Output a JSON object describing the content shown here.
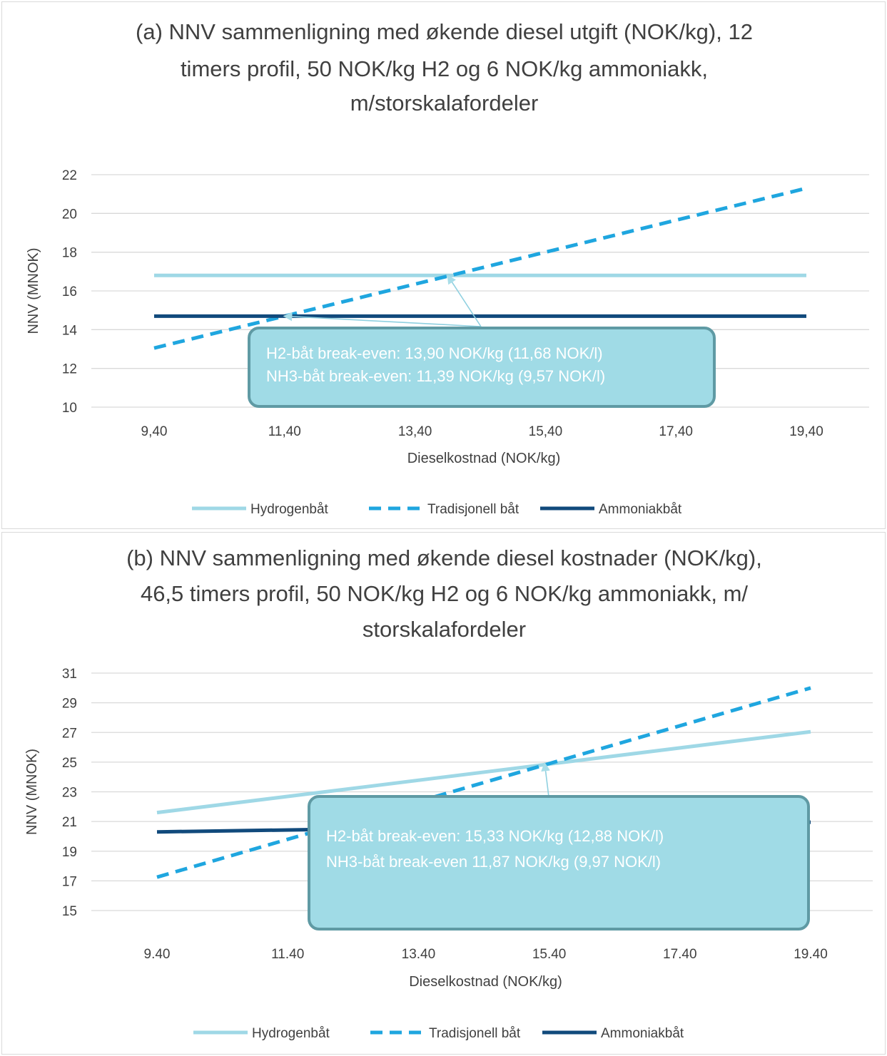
{
  "chart_data": [
    {
      "type": "line",
      "title_lines": [
        "(a) NNV sammenligning med økende diesel utgift (NOK/kg), 12",
        "timers profil, 50 NOK/kg H2 og 6 NOK/kg ammoniakk,",
        "m/storskalafordeler"
      ],
      "xlabel": "Dieselkostnad (NOK/kg)",
      "ylabel": "NNV (MNOK)",
      "x": [
        9.4,
        19.4
      ],
      "x_tick_labels": [
        "9,40",
        "11,40",
        "13,40",
        "15,40",
        "17,40",
        "19,40"
      ],
      "ylim": [
        10,
        22
      ],
      "y_ticks": [
        10,
        12,
        14,
        16,
        18,
        20,
        22
      ],
      "grid": "horizontal",
      "legend_position": "bottom",
      "series": [
        {
          "name": "Hydrogenbåt",
          "values": [
            16.8,
            16.8
          ],
          "color": "#9fd8e6",
          "style": "solid"
        },
        {
          "name": "Tradisjonell båt",
          "values": [
            13.05,
            21.3
          ],
          "color": "#1fa6df",
          "style": "dashed"
        },
        {
          "name": "Ammoniakbåt",
          "values": [
            14.7,
            14.7
          ],
          "color": "#114a7c",
          "style": "solid"
        }
      ],
      "annotation": {
        "lines": [
          "H2-båt break-even: 13,90 NOK/kg (11,68 NOK/l)",
          "NH3-båt break-even: 11,39 NOK/kg (9,57 NOK/l)"
        ],
        "points": [
          [
            13.9,
            16.8
          ],
          [
            11.39,
            14.7
          ]
        ]
      }
    },
    {
      "type": "line",
      "title_lines": [
        "(b) NNV sammenligning med økende diesel kostnader (NOK/kg),",
        "46,5 timers profil, 50 NOK/kg H2 og 6 NOK/kg ammoniakk, m/",
        "storskalafordeler"
      ],
      "xlabel": "Dieselkostnad (NOK/kg)",
      "ylabel": "NNV (MNOK)",
      "x": [
        9.4,
        19.4
      ],
      "x_tick_labels": [
        "9.40",
        "11.40",
        "13.40",
        "15.40",
        "17.40",
        "19.40"
      ],
      "ylim": [
        15,
        31
      ],
      "y_ticks": [
        15,
        17,
        19,
        21,
        23,
        25,
        27,
        29,
        31
      ],
      "grid": "horizontal",
      "legend_position": "bottom",
      "series": [
        {
          "name": "Hydrogenbåt",
          "values": [
            21.6,
            27.05
          ],
          "color": "#9fd8e6",
          "style": "solid"
        },
        {
          "name": "Tradisjonell båt",
          "values": [
            17.25,
            30.0
          ],
          "color": "#1fa6df",
          "style": "dashed"
        },
        {
          "name": "Ammoniakbåt",
          "values": [
            20.3,
            20.95
          ],
          "color": "#114a7c",
          "style": "solid"
        }
      ],
      "annotation": {
        "lines": [
          "H2-båt break-even: 15,33 NOK/kg (12,88 NOK/l)",
          "NH3-båt break-even 11,87 NOK/kg (9,97 NOK/l)"
        ],
        "points": [
          [
            15.33,
            24.95
          ],
          [
            11.87,
            20.55
          ]
        ]
      }
    }
  ]
}
